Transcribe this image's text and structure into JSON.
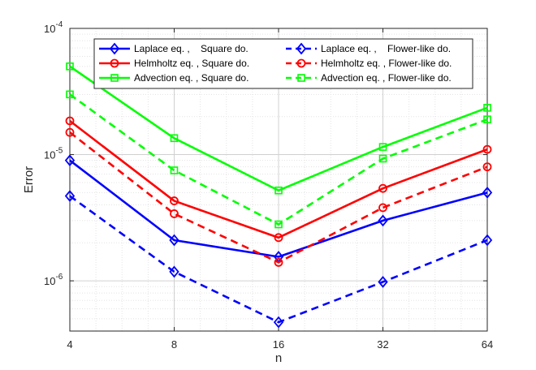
{
  "chart_data": {
    "type": "line",
    "title": "",
    "xlabel": "n",
    "ylabel": "Error",
    "xscale": "log2",
    "yscale": "log10",
    "x": [
      4,
      8,
      16,
      32,
      64
    ],
    "xticks": [
      "4",
      "8",
      "16",
      "32",
      "64"
    ],
    "ylim": [
      4e-07,
      0.0001
    ],
    "yticks": [
      {
        "value": 1e-06,
        "base": "10",
        "exp": "-6"
      },
      {
        "value": 1e-05,
        "base": "10",
        "exp": "-5"
      },
      {
        "value": 0.0001,
        "base": "10",
        "exp": "-4"
      }
    ],
    "grid": true,
    "legend_location": "top-right",
    "series": [
      {
        "name": "Laplace eq. ,    Square do.",
        "color": "#0000ff",
        "dash": "solid",
        "marker": "diamond",
        "values": [
          9e-06,
          2.1e-06,
          1.55e-06,
          3e-06,
          5e-06
        ]
      },
      {
        "name": "Helmholtz eq. , Square do.",
        "color": "#ff0000",
        "dash": "solid",
        "marker": "circle",
        "values": [
          1.85e-05,
          4.3e-06,
          2.2e-06,
          5.4e-06,
          1.1e-05
        ]
      },
      {
        "name": "Advection eq. , Square do.",
        "color": "#00ff00",
        "dash": "solid",
        "marker": "square",
        "values": [
          5e-05,
          1.35e-05,
          5.2e-06,
          1.15e-05,
          2.35e-05
        ]
      },
      {
        "name": "Laplace eq. ,    Flower-like do.",
        "color": "#0000ff",
        "dash": "dashed",
        "marker": "diamond",
        "values": [
          4.7e-06,
          1.18e-06,
          4.7e-07,
          9.8e-07,
          2.1e-06
        ]
      },
      {
        "name": "Helmholtz eq. , Flower-like do.",
        "color": "#ff0000",
        "dash": "dashed",
        "marker": "circle",
        "values": [
          1.5e-05,
          3.4e-06,
          1.4e-06,
          3.8e-06,
          8e-06
        ]
      },
      {
        "name": "Advection eq. , Flower-like do.",
        "color": "#00ff00",
        "dash": "dashed",
        "marker": "square",
        "values": [
          3e-05,
          7.5e-06,
          2.8e-06,
          9.3e-06,
          1.9e-05
        ]
      }
    ]
  }
}
